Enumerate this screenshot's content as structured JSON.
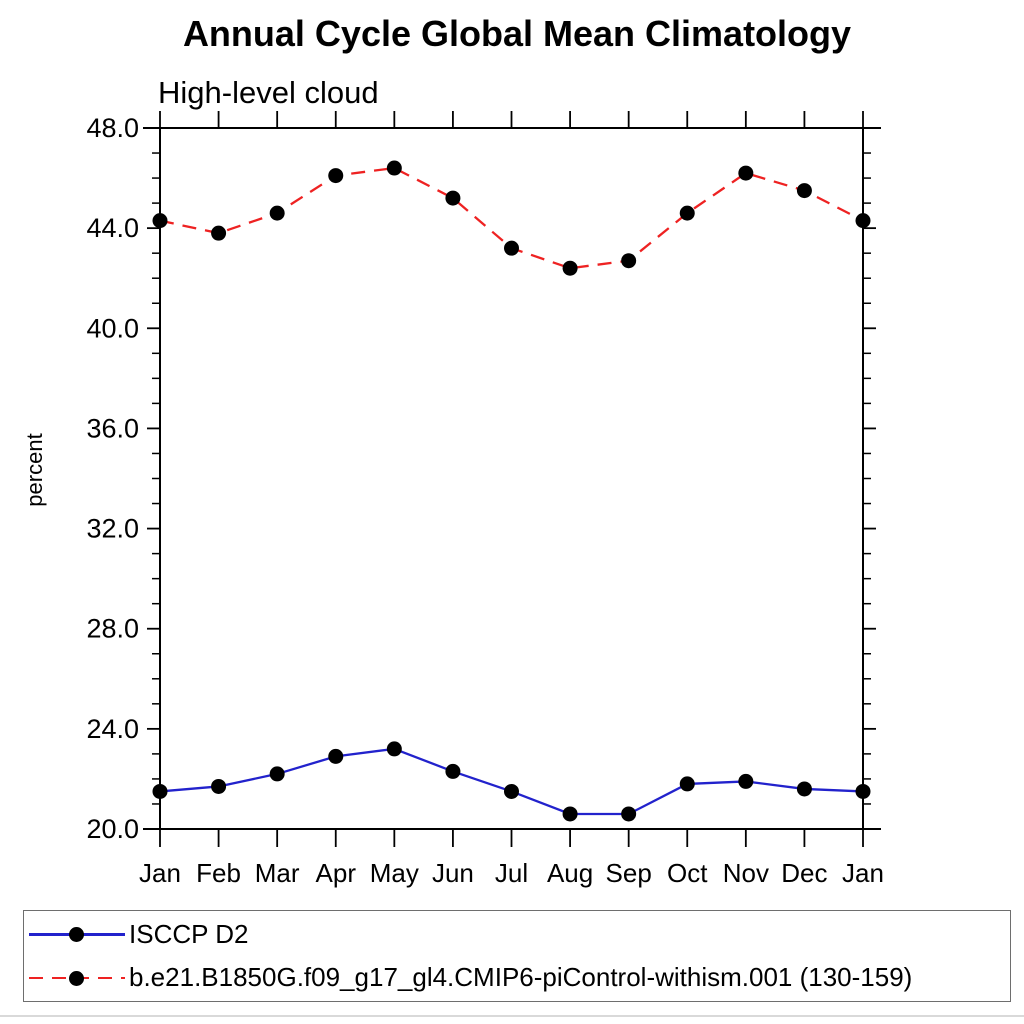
{
  "chart": {
    "title": "Annual Cycle Global Mean Climatology",
    "subtitle": "High-level cloud",
    "ylabel": "percent"
  },
  "chart_data": {
    "type": "line",
    "title": "Annual Cycle Global Mean Climatology",
    "subtitle": "High-level cloud",
    "xlabel": "",
    "ylabel": "percent",
    "categories": [
      "Jan",
      "Feb",
      "Mar",
      "Apr",
      "May",
      "Jun",
      "Jul",
      "Aug",
      "Sep",
      "Oct",
      "Nov",
      "Dec",
      "Jan"
    ],
    "series": [
      {
        "name": "ISCCP D2",
        "color": "#2222cc",
        "line_style": "solid",
        "marker": "filled-circle",
        "marker_color": "#000000",
        "values": [
          21.5,
          21.7,
          22.2,
          22.9,
          23.2,
          22.3,
          21.5,
          20.6,
          20.6,
          21.8,
          21.9,
          21.6,
          21.5
        ]
      },
      {
        "name": "b.e21.B1850G.f09_g17_gl4.CMIP6-piControl-withism.001 (130-159)",
        "color": "#ee2222",
        "line_style": "dashed",
        "marker": "filled-circle",
        "marker_color": "#000000",
        "values": [
          44.3,
          43.8,
          44.6,
          46.1,
          46.4,
          45.2,
          43.2,
          42.4,
          42.7,
          44.6,
          46.2,
          45.5,
          44.3
        ]
      }
    ],
    "ylim": [
      20.0,
      48.0
    ],
    "ytick_major_interval": 4.0,
    "ytick_minor_interval": 1.0,
    "ytick_labels": [
      "48.0",
      "44.0",
      "40.0",
      "36.0",
      "32.0",
      "28.0",
      "24.0",
      "20.0"
    ],
    "grid": false,
    "legend_position": "bottom",
    "axis_color": "#000000"
  }
}
